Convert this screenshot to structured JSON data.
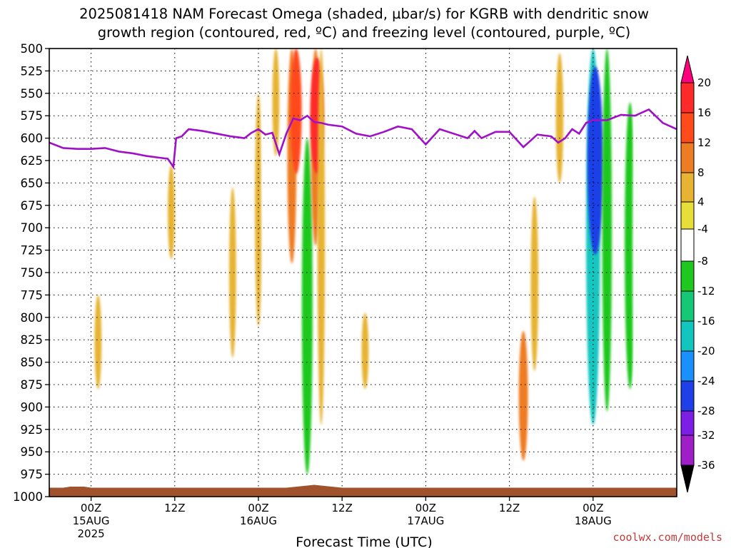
{
  "title_line1": "2025081418 NAM Forecast Omega (shaded, µbar/s) for KGRB with dendritic snow",
  "title_line2": "growth region (contoured, red, ºC) and freezing level (contoured, purple, ºC)",
  "credit": "coolwx.com/models",
  "chart_data": {
    "type": "heatmap",
    "xlabel": "Forecast Time (UTC)",
    "ylabel": "",
    "xlim_hours": [
      -6,
      84
    ],
    "ylim_mb": [
      1000,
      500
    ],
    "y_ticks": [
      500,
      525,
      550,
      575,
      600,
      625,
      650,
      675,
      700,
      725,
      750,
      775,
      800,
      825,
      850,
      875,
      900,
      925,
      950,
      975,
      1000
    ],
    "x_ticks": [
      {
        "hour": 0,
        "label": "00Z",
        "label2": "15AUG",
        "label3": "2025"
      },
      {
        "hour": 12,
        "label": "12Z",
        "label2": "",
        "label3": ""
      },
      {
        "hour": 24,
        "label": "00Z",
        "label2": "16AUG",
        "label3": ""
      },
      {
        "hour": 36,
        "label": "12Z",
        "label2": "",
        "label3": ""
      },
      {
        "hour": 48,
        "label": "00Z",
        "label2": "17AUG",
        "label3": ""
      },
      {
        "hour": 60,
        "label": "12Z",
        "label2": "",
        "label3": ""
      },
      {
        "hour": 72,
        "label": "00Z",
        "label2": "18AUG",
        "label3": ""
      }
    ],
    "grid": true,
    "colorbar": {
      "labels": [
        "20",
        "16",
        "12",
        "8",
        "4",
        "-4",
        "-8",
        "-12",
        "-16",
        "-20",
        "-24",
        "-28",
        "-32",
        "-36"
      ],
      "levels": [
        20,
        16,
        12,
        8,
        4,
        -4,
        -8,
        -12,
        -16,
        -20,
        -24,
        -28,
        -32,
        -36
      ],
      "colors": [
        "#ff007f",
        "#ff2a2a",
        "#ff4a1a",
        "#ee7c22",
        "#e6b332",
        "#e8de3a",
        "#ffffff",
        "#1ec81e",
        "#15c878",
        "#12c6c0",
        "#1a90ff",
        "#1f3fe8",
        "#7c1ee6",
        "#a01ec8",
        "#a8a8a8",
        "#000000"
      ]
    },
    "freezing_level": {
      "color": "#a010c8",
      "hours": [
        -6,
        -4,
        -2,
        0,
        2,
        4,
        6,
        8,
        10,
        11,
        11.8,
        12.2,
        13,
        14,
        16,
        18,
        20,
        22,
        23,
        24,
        25,
        26,
        27,
        28,
        29,
        30,
        31,
        32,
        33,
        34,
        36,
        38,
        40,
        42,
        44,
        46,
        48,
        50,
        52,
        54,
        55,
        56,
        58,
        60,
        62,
        64,
        66,
        67,
        68,
        69,
        70,
        71,
        72,
        74,
        76,
        78,
        80,
        82,
        84
      ],
      "values_mb": [
        605,
        611,
        612,
        612,
        611,
        615,
        617,
        620,
        622,
        623,
        632,
        600,
        598,
        590,
        592,
        595,
        598,
        600,
        594,
        590,
        596,
        594,
        618,
        595,
        578,
        580,
        575,
        582,
        583,
        585,
        587,
        595,
        598,
        593,
        587,
        590,
        607,
        590,
        595,
        600,
        592,
        600,
        593,
        593,
        610,
        596,
        598,
        605,
        600,
        590,
        595,
        583,
        580,
        580,
        574,
        575,
        568,
        583,
        590
      ]
    },
    "omega_cells": [
      {
        "hour": -3.2,
        "p_top": 838,
        "p_bot": 950,
        "value": -6
      },
      {
        "hour": 1.0,
        "p_top": 775,
        "p_bot": 880,
        "value": 5
      },
      {
        "hour": 11.5,
        "p_top": 630,
        "p_bot": 735,
        "value": 5
      },
      {
        "hour": 20.3,
        "p_top": 655,
        "p_bot": 845,
        "value": 5
      },
      {
        "hour": 24.0,
        "p_top": 550,
        "p_bot": 810,
        "value": 5
      },
      {
        "hour": 25.0,
        "p_top": 500,
        "p_bot": 780,
        "value": -6
      },
      {
        "hour": 26.5,
        "p_top": 500,
        "p_bot": 620,
        "value": 5
      },
      {
        "hour": 27.8,
        "p_top": 600,
        "p_bot": 910,
        "value": -8
      },
      {
        "hour": 28.8,
        "p_top": 500,
        "p_bot": 740,
        "value": 9
      },
      {
        "hour": 29.4,
        "p_top": 500,
        "p_bot": 640,
        "value": 13
      },
      {
        "hour": 31.0,
        "p_top": 600,
        "p_bot": 975,
        "value": -12
      },
      {
        "hour": 32.2,
        "p_top": 500,
        "p_bot": 720,
        "value": 9
      },
      {
        "hour": 32.4,
        "p_top": 510,
        "p_bot": 640,
        "value": 17
      },
      {
        "hour": 33.0,
        "p_top": 500,
        "p_bot": 920,
        "value": 6
      },
      {
        "hour": 39.3,
        "p_top": 795,
        "p_bot": 880,
        "value": 5
      },
      {
        "hour": 46.4,
        "p_top": 750,
        "p_bot": 905,
        "value": -6
      },
      {
        "hour": 59.0,
        "p_top": 595,
        "p_bot": 860,
        "value": -6
      },
      {
        "hour": 60.4,
        "p_top": 630,
        "p_bot": 860,
        "value": -6
      },
      {
        "hour": 62.0,
        "p_top": 815,
        "p_bot": 960,
        "value": 9
      },
      {
        "hour": 63.6,
        "p_top": 665,
        "p_bot": 860,
        "value": 6
      },
      {
        "hour": 65.4,
        "p_top": 525,
        "p_bot": 700,
        "value": -6
      },
      {
        "hour": 67.2,
        "p_top": 505,
        "p_bot": 650,
        "value": 6
      },
      {
        "hour": 71.5,
        "p_top": 500,
        "p_bot": 920,
        "value": -8
      },
      {
        "hour": 72.0,
        "p_top": 500,
        "p_bot": 920,
        "value": -18
      },
      {
        "hour": 72.3,
        "p_top": 520,
        "p_bot": 730,
        "value": -26
      },
      {
        "hour": 74.0,
        "p_top": 500,
        "p_bot": 905,
        "value": -10
      },
      {
        "hour": 76.5,
        "p_top": 500,
        "p_bot": 940,
        "value": -8
      },
      {
        "hour": 77.3,
        "p_top": 560,
        "p_bot": 880,
        "value": -12
      },
      {
        "hour": 78.2,
        "p_top": 500,
        "p_bot": 950,
        "value": -6
      }
    ],
    "terrain_color": "#a0522d",
    "surface_pressure_mb": 990
  }
}
